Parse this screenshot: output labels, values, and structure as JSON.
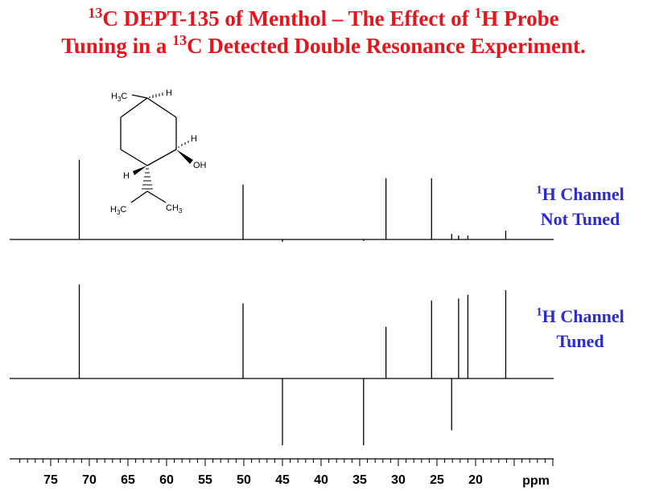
{
  "title": {
    "line1_sup1": "13",
    "line1_text1": "C DEPT-135 of Menthol – The Effect of ",
    "line1_sup2": "1",
    "line1_text2": "H Probe",
    "line2_text1": "Tuning in a ",
    "line2_sup1": "13",
    "line2_text2": "C Detected Double Resonance Experiment."
  },
  "spectra_labels": {
    "top": {
      "sup": "1",
      "line1": "H Channel",
      "line2": "Not Tuned"
    },
    "bottom": {
      "sup": "1",
      "line1": "H Channel",
      "line2": "Tuned"
    }
  },
  "molecule": {
    "name": "Menthol",
    "labels": {
      "h3c_top": "H3C",
      "h_top": "H",
      "h_right": "H",
      "oh": "OH",
      "h_left": "H",
      "h3c_bottom": "H3C",
      "ch3": "CH3"
    }
  },
  "chart_data": {
    "type": "line",
    "xlabel": "ppm",
    "xlim": [
      79,
      9
    ],
    "xticks_major": [
      75,
      70,
      65,
      60,
      55,
      50,
      45,
      40,
      35,
      30,
      25,
      20
    ],
    "tick_labels": [
      "75",
      "70",
      "65",
      "60",
      "55",
      "50",
      "45",
      "40",
      "35",
      "30",
      "25",
      "20"
    ],
    "series": [
      {
        "name": "1H Channel Not Tuned",
        "peaks": [
          {
            "ppm": 71.3,
            "intensity": 1.0
          },
          {
            "ppm": 50.1,
            "intensity": 0.69
          },
          {
            "ppm": 45.0,
            "intensity": -0.03
          },
          {
            "ppm": 34.5,
            "intensity": -0.02
          },
          {
            "ppm": 31.6,
            "intensity": 0.77
          },
          {
            "ppm": 25.7,
            "intensity": 0.77
          },
          {
            "ppm": 23.1,
            "intensity": 0.07
          },
          {
            "ppm": 22.2,
            "intensity": 0.05
          },
          {
            "ppm": 21.0,
            "intensity": 0.05
          },
          {
            "ppm": 16.1,
            "intensity": 0.11
          }
        ]
      },
      {
        "name": "1H Channel Tuned",
        "peaks": [
          {
            "ppm": 71.3,
            "intensity": 1.0
          },
          {
            "ppm": 50.1,
            "intensity": 0.8
          },
          {
            "ppm": 45.0,
            "intensity": -0.71
          },
          {
            "ppm": 34.5,
            "intensity": -0.71
          },
          {
            "ppm": 31.6,
            "intensity": 0.55
          },
          {
            "ppm": 25.7,
            "intensity": 0.83
          },
          {
            "ppm": 23.1,
            "intensity": -0.55
          },
          {
            "ppm": 22.2,
            "intensity": 0.85
          },
          {
            "ppm": 21.0,
            "intensity": 0.89
          },
          {
            "ppm": 16.1,
            "intensity": 0.94
          }
        ]
      }
    ]
  }
}
